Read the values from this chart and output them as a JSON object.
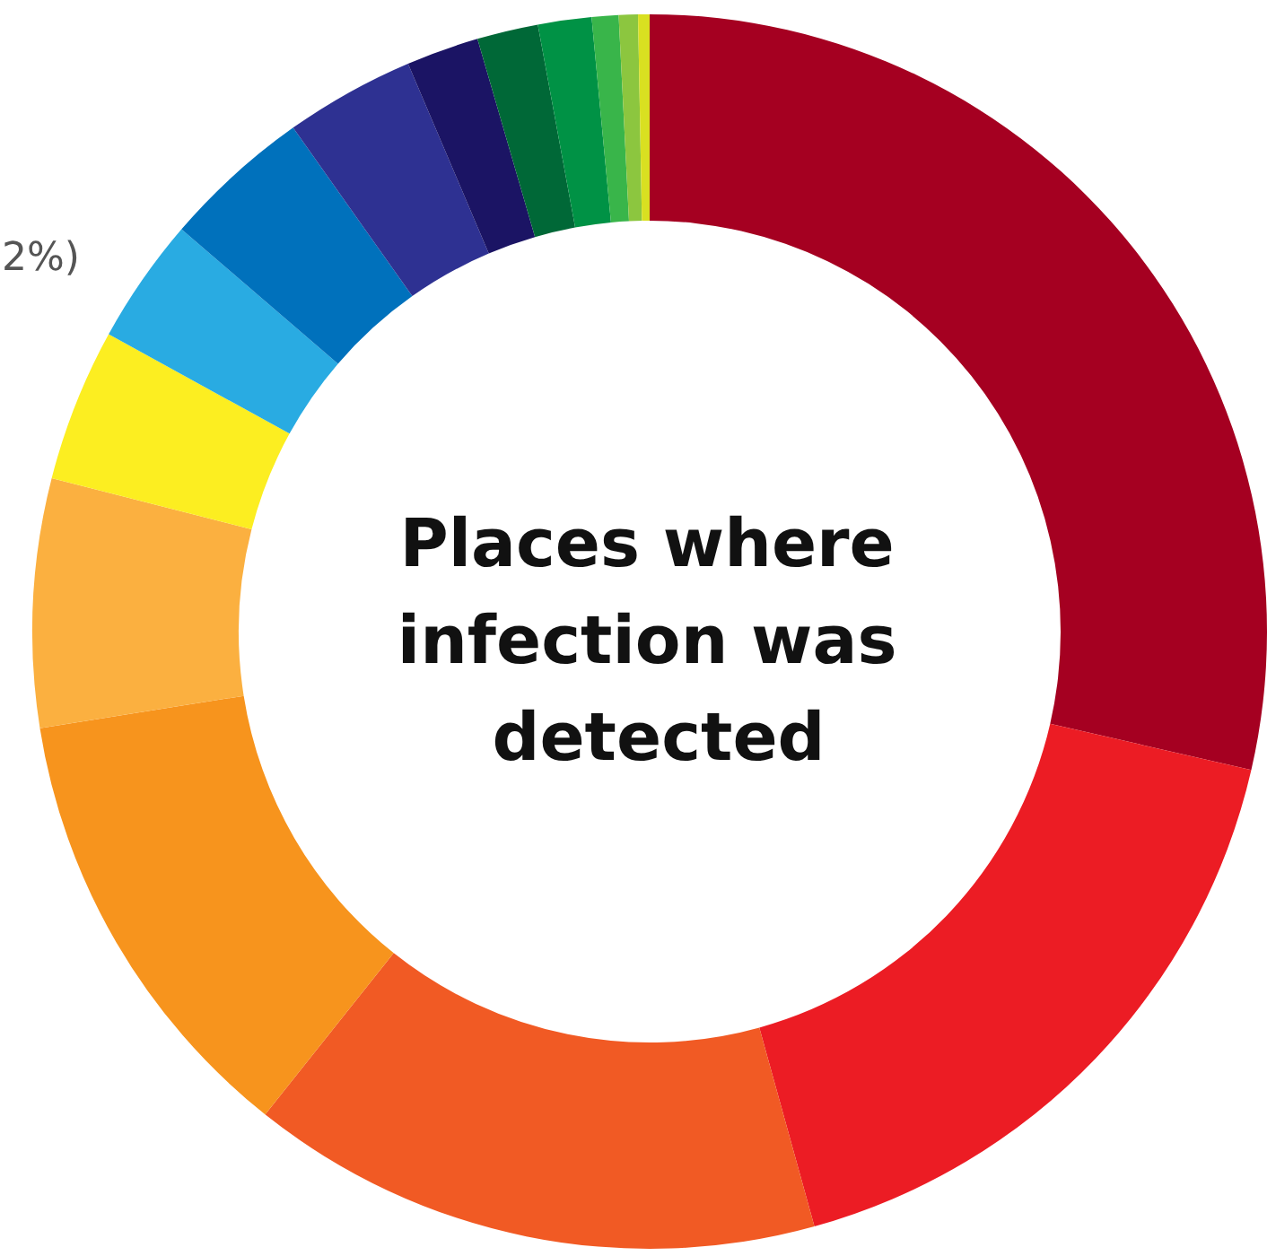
{
  "chart_data": {
    "type": "donut",
    "title": "Places where infection was detected",
    "categories": [
      null,
      null,
      null,
      null,
      null,
      null,
      null,
      null,
      null,
      null,
      null,
      null,
      null,
      null,
      null
    ],
    "values": [
      28.6,
      17.1,
      15.0,
      11.8,
      6.5,
      4.0,
      3.3,
      3.9,
      3.4,
      1.9,
      1.6,
      1.4,
      0.7,
      0.5,
      0.3
    ],
    "colors": [
      "#a50021",
      "#ec1c24",
      "#f15a24",
      "#f7941d",
      "#fbb040",
      "#fcee21",
      "#29abe2",
      "#0071bc",
      "#2e3192",
      "#1b1464",
      "#006837",
      "#009245",
      "#39b54a",
      "#8cc63f",
      "#d9e021"
    ],
    "annotations": [
      "2%)"
    ]
  }
}
